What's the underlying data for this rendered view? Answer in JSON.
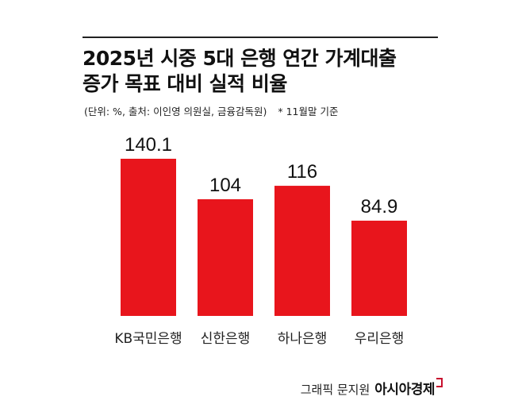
{
  "header": {
    "title_line1": "2025년 시중 5대 은행 연간 가계대출",
    "title_line2": "증가 목표 대비 실적 비율",
    "unit_source": "(단위: %, 출처: 이인영 의원실, 금융감독원)",
    "note": "* 11월말 기준"
  },
  "chart_data": {
    "type": "bar",
    "title": "2025년 시중 5대 은행 연간 가계대출 증가 목표 대비 실적 비율",
    "categories": [
      "KB국민은행",
      "신한은행",
      "하나은행",
      "우리은행"
    ],
    "values": [
      140.1,
      104,
      116,
      84.9
    ],
    "value_labels": [
      "140.1",
      "104",
      "116",
      "84.9"
    ],
    "ylim": [
      0,
      140.1
    ],
    "bar_color": "#e8151c",
    "grid": false,
    "legend": "none"
  },
  "footer": {
    "source": "그래픽 문지원",
    "brand": "아시아경제"
  }
}
